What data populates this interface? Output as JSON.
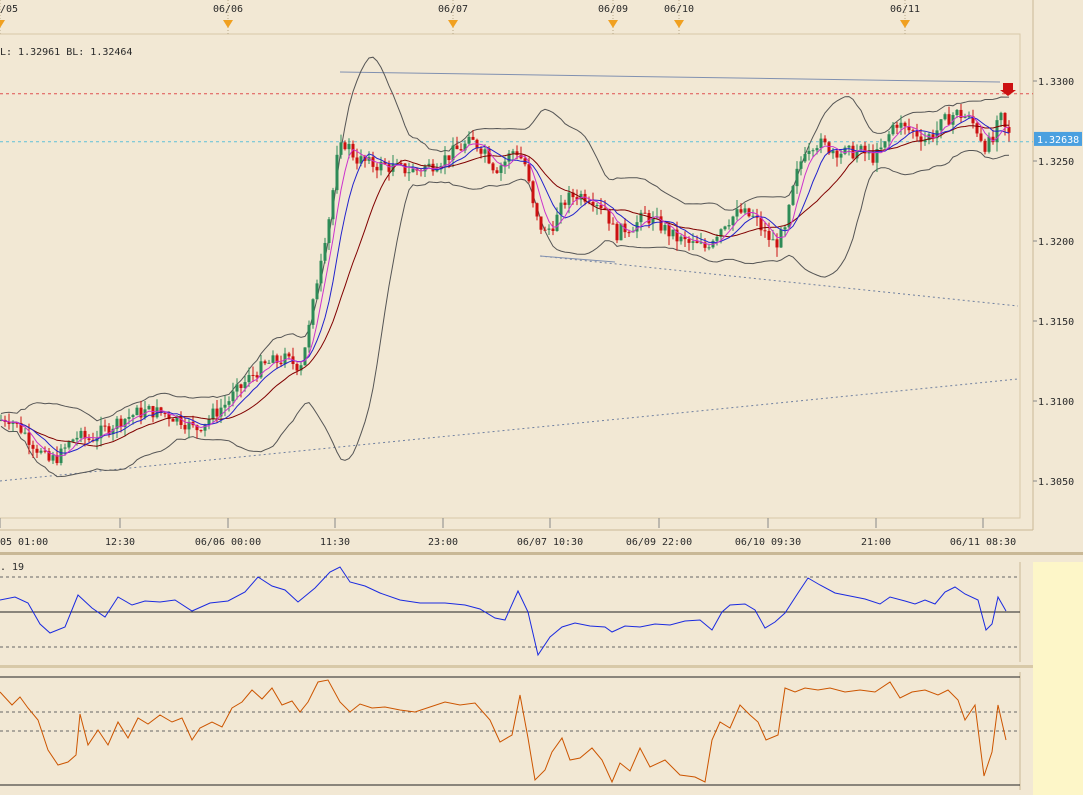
{
  "chart_data": {
    "type": "candlestick",
    "colors": {
      "background": "#f2e8d4",
      "bull": "#2e8b57",
      "bear": "#cc1111",
      "ma_fast": "#cc33cc",
      "ma_mid": "#2222cc",
      "ma_slow": "#800000",
      "bands": "#555555",
      "indicator1_line": "#1a2ae0",
      "indicator2_line": "#cc5500",
      "current_price_tag": "#4aa0e0",
      "resistance_line": "#e05050",
      "side_panel": "#fdf6c8"
    },
    "header_text": "L: 1.32961  BL: 1.32464",
    "indicator1_label": ". 19",
    "current_price_label": "1.32638",
    "current_price": 1.32638,
    "resistance_price": 1.3292,
    "support_price": 1.3262,
    "y_range": [
      1.3026,
      1.3322
    ],
    "y_ticks": [
      "1.3300",
      "1.3250",
      "1.3200",
      "1.3150",
      "1.3100",
      "1.3050"
    ],
    "y_tick_values": [
      1.33,
      1.325,
      1.32,
      1.315,
      1.31,
      1.305
    ],
    "top_date_markers": [
      "/05",
      "06/06",
      "06/07",
      "06/09",
      "06/10",
      "06/11"
    ],
    "x_time_labels": [
      "05 01:00",
      "12:30",
      "06/06 00:00",
      "11:30",
      "23:00",
      "06/07 10:30",
      "06/09 22:00",
      "06/10 09:30",
      "21:00",
      "06/11 08:30"
    ],
    "price_path": [
      [
        0,
        1.3088
      ],
      [
        8,
        1.309
      ],
      [
        22,
        1.3082
      ],
      [
        35,
        1.3072
      ],
      [
        48,
        1.3062
      ],
      [
        60,
        1.3066
      ],
      [
        75,
        1.3078
      ],
      [
        90,
        1.3076
      ],
      [
        105,
        1.3082
      ],
      [
        120,
        1.3088
      ],
      [
        135,
        1.3092
      ],
      [
        150,
        1.3094
      ],
      [
        165,
        1.3092
      ],
      [
        180,
        1.3089
      ],
      [
        195,
        1.3082
      ],
      [
        210,
        1.309
      ],
      [
        225,
        1.3098
      ],
      [
        240,
        1.3108
      ],
      [
        255,
        1.3118
      ],
      [
        270,
        1.3124
      ],
      [
        285,
        1.3126
      ],
      [
        300,
        1.3122
      ],
      [
        310,
        1.3148
      ],
      [
        320,
        1.3188
      ],
      [
        330,
        1.3218
      ],
      [
        338,
        1.3255
      ],
      [
        346,
        1.3262
      ],
      [
        355,
        1.3252
      ],
      [
        370,
        1.3248
      ],
      [
        385,
        1.3247
      ],
      [
        400,
        1.3245
      ],
      [
        415,
        1.3244
      ],
      [
        430,
        1.3247
      ],
      [
        445,
        1.3252
      ],
      [
        460,
        1.3258
      ],
      [
        472,
        1.3262
      ],
      [
        485,
        1.3257
      ],
      [
        495,
        1.3245
      ],
      [
        505,
        1.325
      ],
      [
        515,
        1.3258
      ],
      [
        525,
        1.3248
      ],
      [
        535,
        1.3215
      ],
      [
        545,
        1.3205
      ],
      [
        555,
        1.3212
      ],
      [
        565,
        1.3225
      ],
      [
        575,
        1.3229
      ],
      [
        590,
        1.3228
      ],
      [
        605,
        1.3221
      ],
      [
        615,
        1.3204
      ],
      [
        625,
        1.3208
      ],
      [
        635,
        1.321
      ],
      [
        645,
        1.3216
      ],
      [
        660,
        1.321
      ],
      [
        675,
        1.3202
      ],
      [
        690,
        1.3198
      ],
      [
        705,
        1.3196
      ],
      [
        715,
        1.3204
      ],
      [
        725,
        1.3212
      ],
      [
        740,
        1.3218
      ],
      [
        755,
        1.3214
      ],
      [
        765,
        1.3204
      ],
      [
        775,
        1.3198
      ],
      [
        785,
        1.3206
      ],
      [
        795,
        1.3238
      ],
      [
        805,
        1.3258
      ],
      [
        815,
        1.3262
      ],
      [
        830,
        1.3258
      ],
      [
        845,
        1.3255
      ],
      [
        860,
        1.3256
      ],
      [
        875,
        1.3252
      ],
      [
        885,
        1.326
      ],
      [
        895,
        1.3275
      ],
      [
        905,
        1.327
      ],
      [
        915,
        1.3268
      ],
      [
        925,
        1.3264
      ],
      [
        935,
        1.3268
      ],
      [
        945,
        1.3275
      ],
      [
        955,
        1.328
      ],
      [
        965,
        1.3278
      ],
      [
        975,
        1.3272
      ],
      [
        985,
        1.326
      ],
      [
        993,
        1.3262
      ],
      [
        1000,
        1.3278
      ],
      [
        1006,
        1.3268
      ],
      [
        1012,
        1.3264
      ]
    ],
    "indicator1_path": [
      [
        0,
        600
      ],
      [
        15,
        597
      ],
      [
        28,
        603
      ],
      [
        40,
        624
      ],
      [
        50,
        633
      ],
      [
        65,
        627
      ],
      [
        78,
        595
      ],
      [
        92,
        608
      ],
      [
        105,
        617
      ],
      [
        118,
        597
      ],
      [
        132,
        605
      ],
      [
        145,
        601
      ],
      [
        160,
        602
      ],
      [
        175,
        600
      ],
      [
        192,
        611
      ],
      [
        210,
        603
      ],
      [
        228,
        601
      ],
      [
        245,
        592
      ],
      [
        258,
        577
      ],
      [
        272,
        586
      ],
      [
        285,
        590
      ],
      [
        298,
        602
      ],
      [
        315,
        588
      ],
      [
        330,
        572
      ],
      [
        340,
        567
      ],
      [
        350,
        582
      ],
      [
        365,
        586
      ],
      [
        380,
        593
      ],
      [
        400,
        600
      ],
      [
        420,
        603
      ],
      [
        445,
        603
      ],
      [
        465,
        605
      ],
      [
        480,
        609
      ],
      [
        495,
        618
      ],
      [
        505,
        620
      ],
      [
        518,
        591
      ],
      [
        528,
        612
      ],
      [
        538,
        655
      ],
      [
        550,
        637
      ],
      [
        562,
        627
      ],
      [
        575,
        623
      ],
      [
        590,
        626
      ],
      [
        605,
        627
      ],
      [
        612,
        632
      ],
      [
        625,
        626
      ],
      [
        640,
        627
      ],
      [
        655,
        624
      ],
      [
        670,
        625
      ],
      [
        685,
        621
      ],
      [
        700,
        620
      ],
      [
        712,
        630
      ],
      [
        722,
        612
      ],
      [
        730,
        605
      ],
      [
        745,
        604
      ],
      [
        755,
        610
      ],
      [
        765,
        628
      ],
      [
        775,
        622
      ],
      [
        785,
        613
      ],
      [
        798,
        593
      ],
      [
        808,
        578
      ],
      [
        820,
        585
      ],
      [
        835,
        593
      ],
      [
        850,
        596
      ],
      [
        865,
        599
      ],
      [
        880,
        604
      ],
      [
        890,
        597
      ],
      [
        905,
        601
      ],
      [
        915,
        604
      ],
      [
        925,
        600
      ],
      [
        935,
        604
      ],
      [
        945,
        592
      ],
      [
        955,
        587
      ],
      [
        965,
        594
      ],
      [
        978,
        600
      ],
      [
        986,
        630
      ],
      [
        992,
        624
      ],
      [
        998,
        597
      ],
      [
        1006,
        611
      ]
    ],
    "indicator1_levels": [
      577,
      612,
      647
    ],
    "indicator2_path": [
      [
        0,
        692
      ],
      [
        12,
        705
      ],
      [
        20,
        697
      ],
      [
        28,
        708
      ],
      [
        38,
        720
      ],
      [
        48,
        750
      ],
      [
        58,
        765
      ],
      [
        68,
        762
      ],
      [
        76,
        755
      ],
      [
        80,
        714
      ],
      [
        88,
        745
      ],
      [
        98,
        730
      ],
      [
        108,
        745
      ],
      [
        118,
        722
      ],
      [
        128,
        738
      ],
      [
        138,
        718
      ],
      [
        148,
        724
      ],
      [
        160,
        715
      ],
      [
        172,
        722
      ],
      [
        182,
        718
      ],
      [
        192,
        740
      ],
      [
        200,
        728
      ],
      [
        212,
        722
      ],
      [
        222,
        727
      ],
      [
        232,
        708
      ],
      [
        242,
        702
      ],
      [
        252,
        690
      ],
      [
        262,
        699
      ],
      [
        272,
        688
      ],
      [
        282,
        705
      ],
      [
        292,
        701
      ],
      [
        300,
        712
      ],
      [
        308,
        702
      ],
      [
        318,
        682
      ],
      [
        328,
        680
      ],
      [
        340,
        702
      ],
      [
        350,
        712
      ],
      [
        360,
        704
      ],
      [
        372,
        708
      ],
      [
        385,
        707
      ],
      [
        400,
        710
      ],
      [
        415,
        712
      ],
      [
        430,
        707
      ],
      [
        445,
        702
      ],
      [
        460,
        705
      ],
      [
        475,
        703
      ],
      [
        490,
        720
      ],
      [
        500,
        742
      ],
      [
        512,
        735
      ],
      [
        520,
        695
      ],
      [
        528,
        738
      ],
      [
        535,
        780
      ],
      [
        545,
        770
      ],
      [
        552,
        752
      ],
      [
        562,
        738
      ],
      [
        570,
        760
      ],
      [
        580,
        758
      ],
      [
        592,
        748
      ],
      [
        602,
        760
      ],
      [
        612,
        782
      ],
      [
        620,
        763
      ],
      [
        630,
        771
      ],
      [
        640,
        748
      ],
      [
        650,
        767
      ],
      [
        665,
        760
      ],
      [
        680,
        775
      ],
      [
        695,
        777
      ],
      [
        705,
        782
      ],
      [
        712,
        740
      ],
      [
        720,
        722
      ],
      [
        730,
        728
      ],
      [
        740,
        705
      ],
      [
        750,
        715
      ],
      [
        758,
        722
      ],
      [
        766,
        740
      ],
      [
        778,
        735
      ],
      [
        785,
        688
      ],
      [
        795,
        692
      ],
      [
        805,
        688
      ],
      [
        818,
        690
      ],
      [
        830,
        688
      ],
      [
        845,
        692
      ],
      [
        860,
        690
      ],
      [
        875,
        692
      ],
      [
        890,
        682
      ],
      [
        900,
        698
      ],
      [
        912,
        692
      ],
      [
        925,
        690
      ],
      [
        938,
        695
      ],
      [
        948,
        690
      ],
      [
        958,
        700
      ],
      [
        965,
        720
      ],
      [
        975,
        705
      ],
      [
        984,
        776
      ],
      [
        992,
        752
      ],
      [
        998,
        705
      ],
      [
        1006,
        740
      ]
    ],
    "indicator2_levels": [
      677,
      712,
      731,
      785
    ]
  }
}
